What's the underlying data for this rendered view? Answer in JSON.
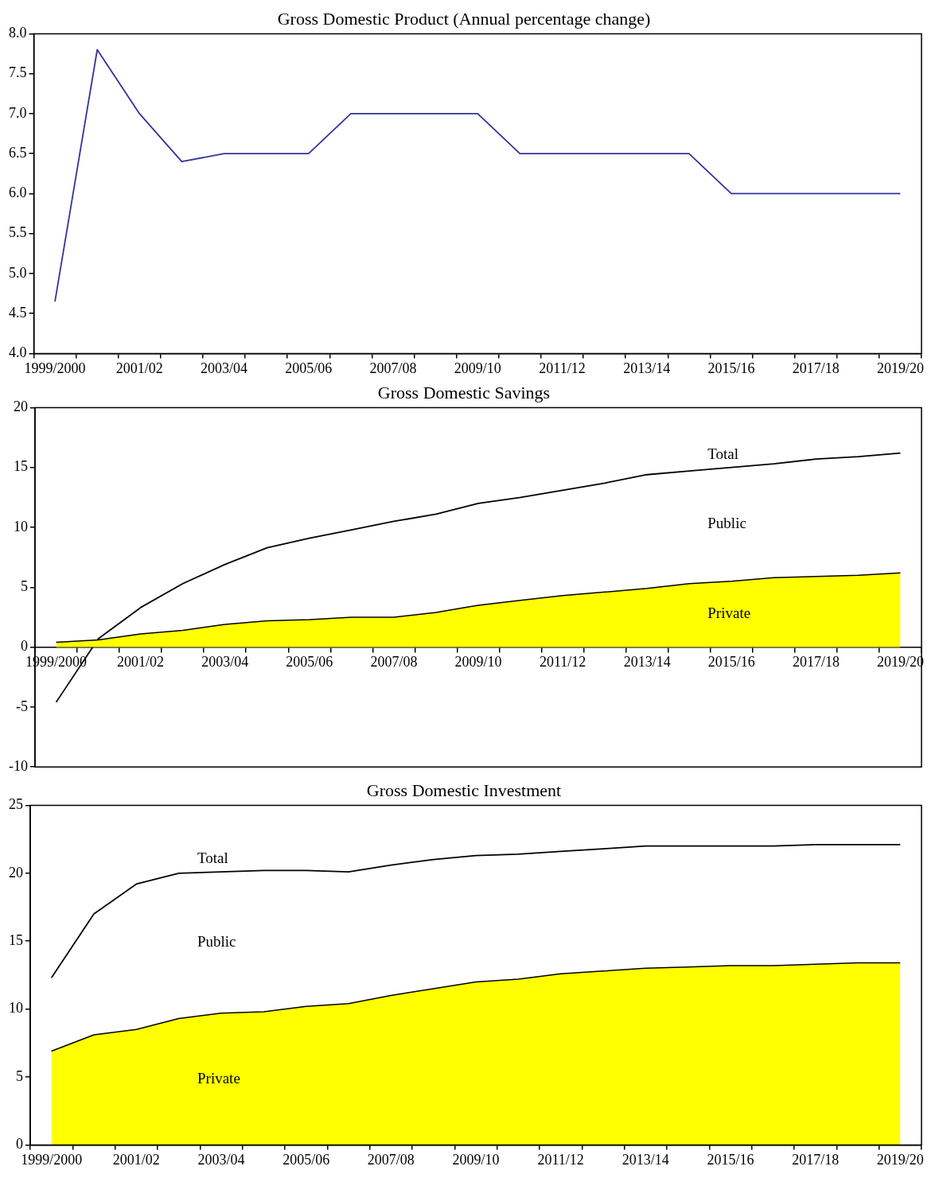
{
  "chart_data": [
    {
      "type": "line",
      "title": "Gross Domestic Product (Annual percentage change)",
      "categories": [
        "1999/2000",
        null,
        "2001/02",
        null,
        "2003/04",
        null,
        "2005/06",
        null,
        "2007/08",
        null,
        "2009/10",
        null,
        "2011/12",
        null,
        "2013/14",
        null,
        "2015/16",
        null,
        "2017/18",
        null,
        "2019/20"
      ],
      "series": [
        {
          "color": "#333399",
          "values": [
            4.65,
            7.8,
            7.0,
            6.4,
            6.5,
            6.5,
            6.5,
            7.0,
            7.0,
            7.0,
            7.0,
            6.5,
            6.5,
            6.5,
            6.5,
            6.5,
            6.0,
            6.0,
            6.0,
            6.0,
            6.0
          ]
        }
      ],
      "ylim": [
        4,
        8
      ],
      "yticks": [
        {
          "value": 4,
          "label": "4.0"
        },
        {
          "value": 4.5,
          "label": "4.5"
        },
        {
          "value": 5,
          "label": "5.0"
        },
        {
          "value": 5.5,
          "label": "5.5"
        },
        {
          "value": 6,
          "label": "6.0"
        },
        {
          "value": 6.5,
          "label": "6.5"
        },
        {
          "value": 7,
          "label": "7.0"
        },
        {
          "value": 7.5,
          "label": "7.5"
        },
        {
          "value": 8,
          "label": "8.0"
        }
      ]
    },
    {
      "type": "area",
      "title": "Gross Domestic Savings",
      "categories": [
        "1999/2000",
        null,
        "2001/02",
        null,
        "2003/04",
        null,
        "2005/06",
        null,
        "2007/08",
        null,
        "2009/10",
        null,
        "2011/12",
        null,
        "2013/14",
        null,
        "2015/16",
        null,
        "2017/18",
        null,
        "2019/20"
      ],
      "series": [
        {
          "name": "Private",
          "type": "area",
          "color": "#ffff00",
          "values": [
            0.4,
            0.6,
            1.1,
            1.4,
            1.9,
            2.2,
            2.3,
            2.5,
            2.5,
            2.9,
            3.5,
            3.9,
            4.3,
            4.6,
            4.9,
            5.3,
            5.5,
            5.8,
            5.9,
            6.0,
            6.2
          ]
        },
        {
          "name": "Total",
          "type": "line",
          "color": "#000000",
          "values": [
            -4.6,
            0.7,
            3.3,
            5.3,
            6.9,
            8.3,
            9.1,
            9.8,
            10.5,
            11.1,
            12.0,
            12.5,
            13.1,
            13.7,
            14.4,
            14.7,
            15.0,
            15.3,
            15.7,
            15.9,
            16.2
          ]
        }
      ],
      "annotations": [
        "Public"
      ],
      "ylim": [
        -10,
        20
      ],
      "yticks": [
        -10,
        -5,
        0,
        5,
        10,
        15,
        20
      ]
    },
    {
      "type": "area",
      "title": "Gross Domestic Investment",
      "categories": [
        "1999/2000",
        null,
        "2001/02",
        null,
        "2003/04",
        null,
        "2005/06",
        null,
        "2007/08",
        null,
        "2009/10",
        null,
        "2011/12",
        null,
        "2013/14",
        null,
        "2015/16",
        null,
        "2017/18",
        null,
        "2019/20"
      ],
      "series": [
        {
          "name": "Private",
          "type": "area",
          "color": "#ffff00",
          "values": [
            6.9,
            8.1,
            8.5,
            9.3,
            9.7,
            9.8,
            10.2,
            10.4,
            11.0,
            11.5,
            12.0,
            12.2,
            12.6,
            12.8,
            13.0,
            13.1,
            13.2,
            13.2,
            13.3,
            13.4,
            13.4
          ]
        },
        {
          "name": "Total",
          "type": "line",
          "color": "#000000",
          "values": [
            12.3,
            17.0,
            19.2,
            20.0,
            20.1,
            20.2,
            20.2,
            20.1,
            20.6,
            21.0,
            21.3,
            21.4,
            21.6,
            21.8,
            22.0,
            22.0,
            22.0,
            22.0,
            22.1,
            22.1,
            22.1
          ]
        }
      ],
      "annotations": [
        "Public"
      ],
      "ylim": [
        0,
        25
      ],
      "yticks": [
        0,
        5,
        10,
        15,
        20,
        25
      ]
    }
  ]
}
